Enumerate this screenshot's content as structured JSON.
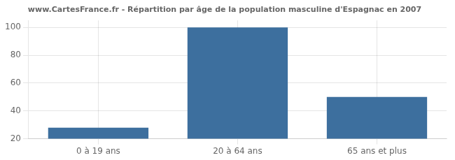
{
  "chart_data": {
    "type": "bar",
    "title": "www.CartesFrance.fr - Répartition par âge de la population masculine d'Espagnac en 2007",
    "categories": [
      "0 à 19 ans",
      "20 à 64 ans",
      "65 ans et plus"
    ],
    "values": [
      28,
      100,
      50
    ],
    "color": "#3d6f9e",
    "ylim": [
      20,
      105
    ],
    "yticks": [
      20,
      40,
      60,
      80,
      100
    ],
    "grid": true
  }
}
